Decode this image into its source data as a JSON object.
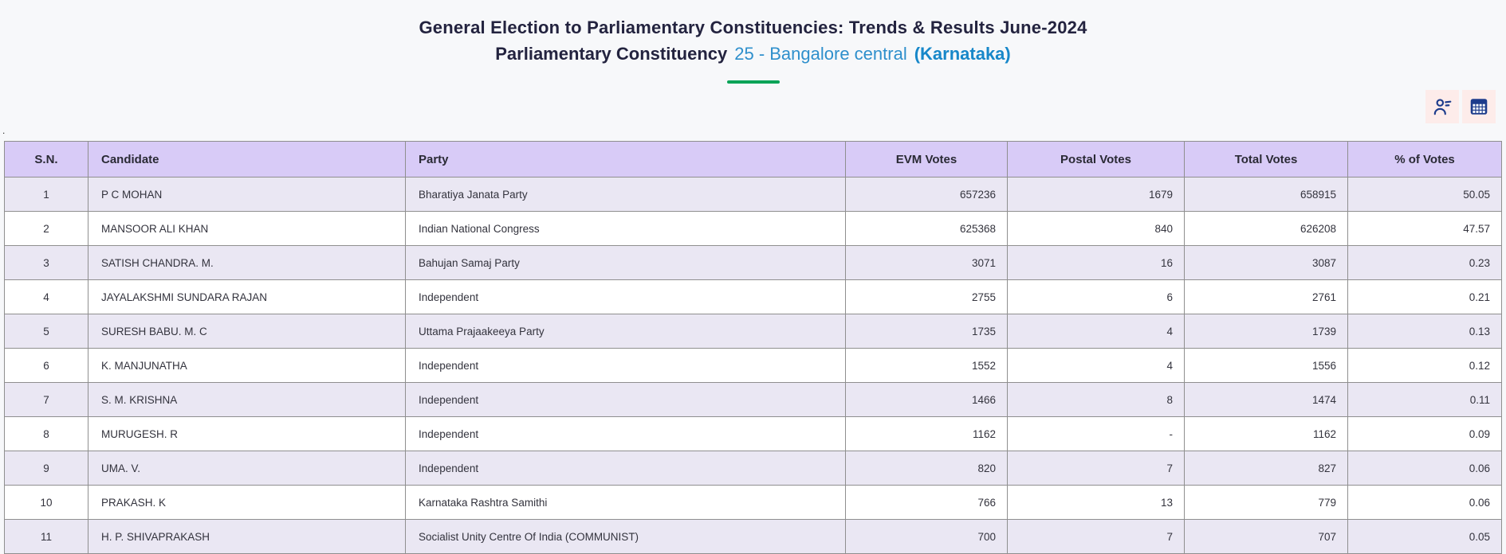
{
  "header": {
    "title": "General Election to Parliamentary Constituencies: Trends & Results June-2024",
    "subtitle": {
      "prefix": "Parliamentary Constituency",
      "constituency": "25 - Bangalore central",
      "state": "(Karnataka)"
    }
  },
  "stray_text": ".",
  "toolbar": {
    "icons": [
      "candidate-list-icon",
      "table-view-icon"
    ]
  },
  "colors": {
    "accent_blue": "#2e8fcc",
    "accent_blue_bold": "#1787c9",
    "underline_green": "#05a357",
    "header_purple": "#d8cbf7",
    "row_alt_lavender": "#eae7f3",
    "icon_navy": "#1d3c8c",
    "icon_tile_pink": "#fdecea"
  },
  "table": {
    "headers": [
      "S.N.",
      "Candidate",
      "Party",
      "EVM Votes",
      "Postal Votes",
      "Total Votes",
      "% of Votes"
    ],
    "rows": [
      [
        "1",
        "P C MOHAN",
        "Bharatiya Janata Party",
        "657236",
        "1679",
        "658915",
        "50.05"
      ],
      [
        "2",
        "MANSOOR ALI KHAN",
        "Indian National Congress",
        "625368",
        "840",
        "626208",
        "47.57"
      ],
      [
        "3",
        "SATISH CHANDRA. M.",
        "Bahujan Samaj Party",
        "3071",
        "16",
        "3087",
        "0.23"
      ],
      [
        "4",
        "JAYALAKSHMI SUNDARA RAJAN",
        "Independent",
        "2755",
        "6",
        "2761",
        "0.21"
      ],
      [
        "5",
        "SURESH BABU. M. C",
        "Uttama Prajaakeeya Party",
        "1735",
        "4",
        "1739",
        "0.13"
      ],
      [
        "6",
        "K. MANJUNATHA",
        "Independent",
        "1552",
        "4",
        "1556",
        "0.12"
      ],
      [
        "7",
        "S. M. KRISHNA",
        "Independent",
        "1466",
        "8",
        "1474",
        "0.11"
      ],
      [
        "8",
        "MURUGESH. R",
        "Independent",
        "1162",
        "-",
        "1162",
        "0.09"
      ],
      [
        "9",
        "UMA. V.",
        "Independent",
        "820",
        "7",
        "827",
        "0.06"
      ],
      [
        "10",
        "PRAKASH. K",
        "Karnataka Rashtra Samithi",
        "766",
        "13",
        "779",
        "0.06"
      ],
      [
        "11",
        "H. P. SHIVAPRAKASH",
        "Socialist Unity Centre Of India (COMMUNIST)",
        "700",
        "7",
        "707",
        "0.05"
      ]
    ]
  }
}
